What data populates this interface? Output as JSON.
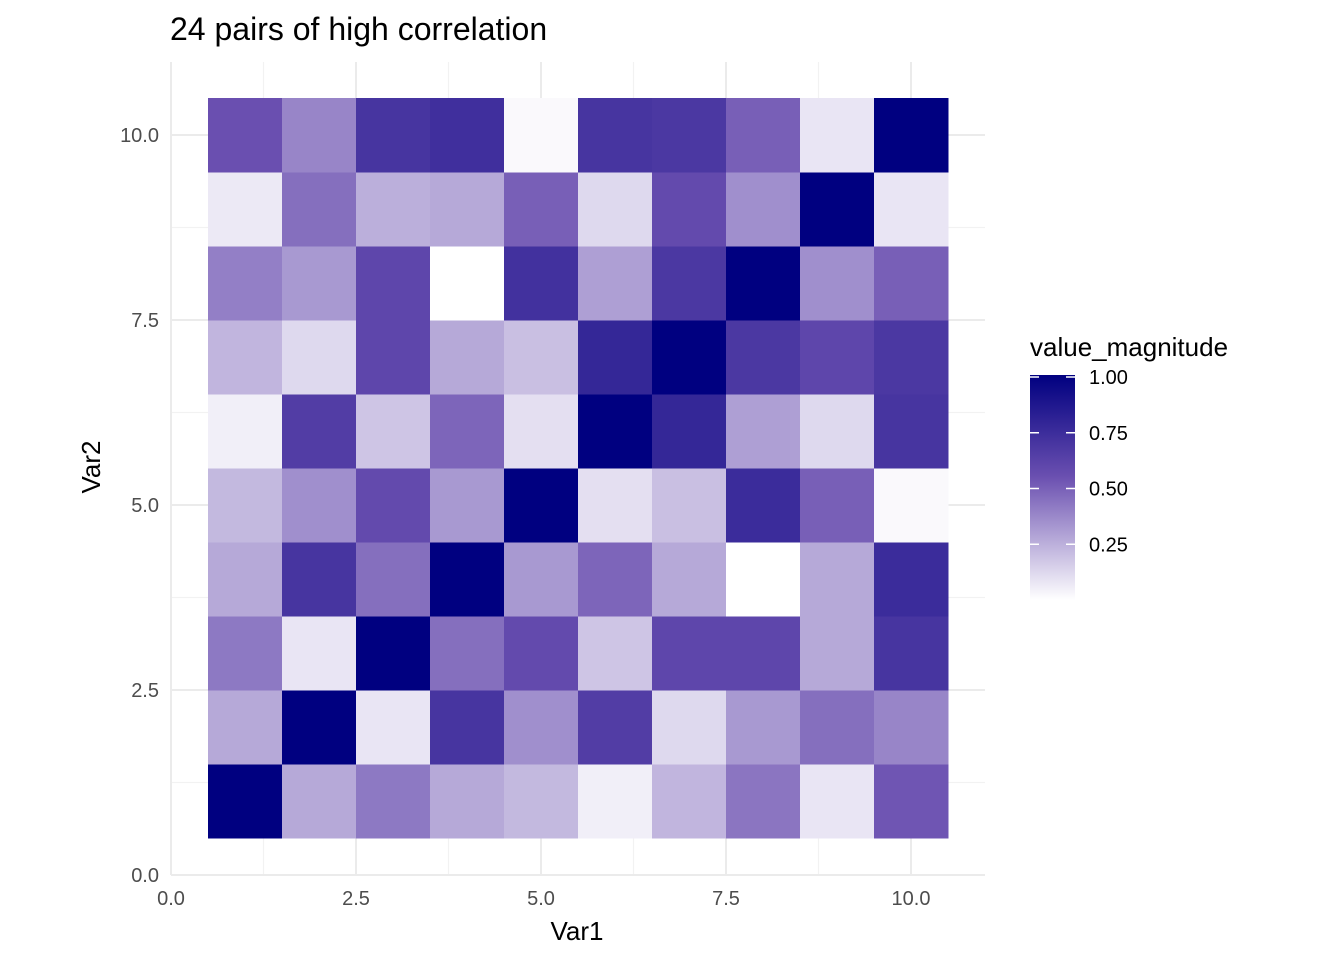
{
  "chart_data": {
    "type": "heatmap",
    "title": "24 pairs of high correlation",
    "xlabel": "Var1",
    "ylabel": "Var2",
    "xlim": [
      0,
      10.5
    ],
    "ylim": [
      0,
      10.5
    ],
    "x_ticks": [
      "0.0",
      "2.5",
      "5.0",
      "7.5",
      "10.0"
    ],
    "y_ticks": [
      "0.0",
      "2.5",
      "5.0",
      "7.5",
      "10.0"
    ],
    "x": [
      1,
      2,
      3,
      4,
      5,
      6,
      7,
      8,
      9,
      10
    ],
    "y": [
      1,
      2,
      3,
      4,
      5,
      6,
      7,
      8,
      9,
      10
    ],
    "values": [
      [
        1.0,
        0.27,
        0.42,
        0.27,
        0.22,
        0.05,
        0.23,
        0.43,
        0.08,
        0.53
      ],
      [
        0.27,
        1.0,
        0.08,
        0.7,
        0.35,
        0.65,
        0.12,
        0.32,
        0.45,
        0.38
      ],
      [
        0.42,
        0.08,
        1.0,
        0.45,
        0.58,
        0.18,
        0.6,
        0.6,
        0.27,
        0.7
      ],
      [
        0.27,
        0.7,
        0.45,
        1.0,
        0.32,
        0.48,
        0.27,
        0.0,
        0.27,
        0.75
      ],
      [
        0.22,
        0.35,
        0.58,
        0.32,
        1.0,
        0.1,
        0.2,
        0.75,
        0.5,
        0.02
      ],
      [
        0.05,
        0.65,
        0.18,
        0.48,
        0.1,
        1.0,
        0.78,
        0.3,
        0.12,
        0.7
      ],
      [
        0.23,
        0.12,
        0.6,
        0.27,
        0.2,
        0.78,
        1.0,
        0.68,
        0.6,
        0.68
      ],
      [
        0.4,
        0.32,
        0.6,
        0.0,
        0.72,
        0.3,
        0.68,
        1.0,
        0.35,
        0.5
      ],
      [
        0.07,
        0.45,
        0.25,
        0.27,
        0.5,
        0.12,
        0.58,
        0.35,
        1.0,
        0.08
      ],
      [
        0.55,
        0.38,
        0.7,
        0.73,
        0.02,
        0.7,
        0.68,
        0.5,
        0.08,
        1.0
      ]
    ],
    "legend": {
      "title": "value_magnitude",
      "position": "right",
      "ticks": [
        0.25,
        0.5,
        0.75,
        1.0
      ],
      "tick_labels": [
        "0.25",
        "0.50",
        "0.75",
        "1.00"
      ],
      "low_color": "#ffffff",
      "mid_color": "#6a4fb0",
      "high_color": "#000080"
    },
    "grid": true
  }
}
